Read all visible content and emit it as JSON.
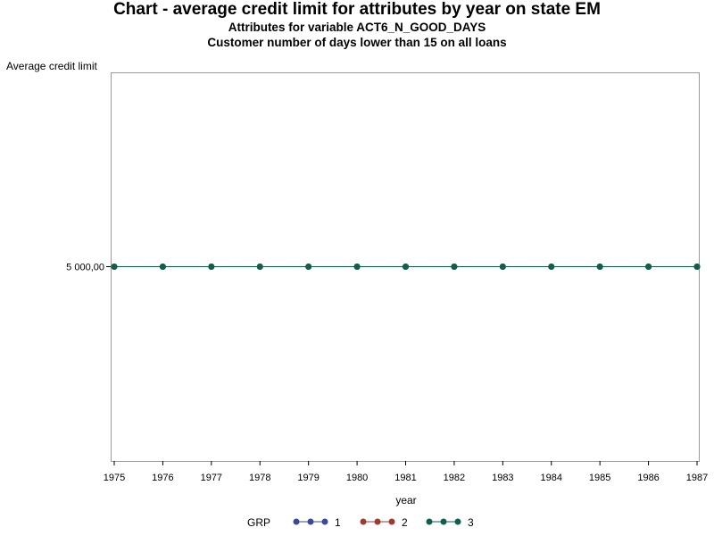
{
  "chart_data": {
    "type": "line",
    "title": "Chart - average credit limit for attributes by year on state EM",
    "subtitles": [
      "Attributes for variable ACT6_N_GOOD_DAYS",
      "Customer number of days lower than 15 on all loans"
    ],
    "xlabel": "year",
    "ylabel": "Average credit limit",
    "x": [
      1975,
      1976,
      1977,
      1978,
      1979,
      1980,
      1981,
      1982,
      1983,
      1984,
      1985,
      1986,
      1987
    ],
    "x_tick_labels": [
      "1975",
      "1976",
      "1977",
      "1978",
      "1979",
      "1980",
      "1981",
      "1982",
      "1983",
      "1984",
      "1985",
      "1986",
      "1987"
    ],
    "y_tick_labels": [
      "5 000,00"
    ],
    "y_ticks": [
      5000
    ],
    "xlim": [
      1975,
      1987
    ],
    "ylim": [
      4500,
      5500
    ],
    "grid": false,
    "legend_placement": "bottom",
    "legend_title": "GRP",
    "series": [
      {
        "name": "1",
        "color": "#3a4a9a",
        "values": [
          5000,
          5000,
          5000,
          5000,
          5000,
          5000,
          5000,
          5000,
          5000,
          5000,
          5000,
          5000,
          5000
        ]
      },
      {
        "name": "2",
        "color": "#a03a30",
        "values": [
          5000,
          5000,
          5000,
          5000,
          5000,
          5000,
          5000,
          5000,
          5000,
          5000,
          5000,
          5000,
          5000
        ]
      },
      {
        "name": "3",
        "color": "#0f5f4f",
        "values": [
          5000,
          5000,
          5000,
          5000,
          5000,
          5000,
          5000,
          5000,
          5000,
          5000,
          5000,
          5000,
          5000
        ]
      }
    ]
  }
}
